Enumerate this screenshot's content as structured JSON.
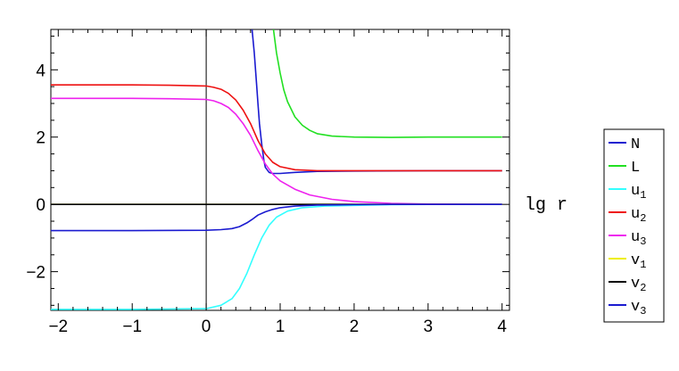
{
  "chart_data": {
    "type": "line",
    "title": "",
    "xlabel": "lg r",
    "ylabel": "",
    "xlim": [
      -2.1,
      4.1
    ],
    "ylim": [
      -3.15,
      5.2
    ],
    "xticks": [
      -2,
      -1,
      0,
      1,
      2,
      3,
      4
    ],
    "xtick_labels": [
      "−2",
      "−1",
      "0",
      "1",
      "2",
      "3",
      "4"
    ],
    "yticks": [
      -2,
      0,
      2,
      4
    ],
    "ytick_labels": [
      "−2",
      "0",
      "2",
      "4"
    ],
    "grid": false,
    "legend_position": "right",
    "series": [
      {
        "name": "N",
        "sub": "",
        "color": "#1a1ad0",
        "x": [
          0.62,
          0.65,
          0.68,
          0.7,
          0.72,
          0.75,
          0.78,
          0.8,
          0.85,
          0.9,
          1.0,
          1.2,
          1.5,
          2.0,
          3.0,
          4.0
        ],
        "y": [
          5.2,
          4.5,
          3.6,
          3.0,
          2.4,
          1.8,
          1.3,
          1.1,
          0.95,
          0.92,
          0.92,
          0.95,
          0.98,
          0.99,
          1.0,
          1.0
        ]
      },
      {
        "name": "L",
        "sub": "",
        "color": "#22e022",
        "x": [
          0.91,
          0.95,
          1.0,
          1.05,
          1.1,
          1.2,
          1.3,
          1.4,
          1.5,
          1.7,
          2.0,
          2.5,
          3.0,
          4.0
        ],
        "y": [
          5.2,
          4.5,
          3.9,
          3.4,
          3.05,
          2.6,
          2.35,
          2.2,
          2.1,
          2.03,
          2.0,
          1.99,
          2.0,
          2.0
        ]
      },
      {
        "name": "u",
        "sub": "1",
        "color": "#33ffff",
        "x": [
          -2.1,
          -1.0,
          0.0,
          0.2,
          0.35,
          0.45,
          0.55,
          0.65,
          0.75,
          0.85,
          0.95,
          1.1,
          1.3,
          1.6,
          2.0,
          2.5,
          3.0,
          4.0
        ],
        "y": [
          -3.12,
          -3.12,
          -3.1,
          -3.0,
          -2.8,
          -2.5,
          -2.05,
          -1.5,
          -1.0,
          -0.62,
          -0.38,
          -0.2,
          -0.1,
          -0.05,
          -0.03,
          -0.01,
          0.0,
          0.0
        ]
      },
      {
        "name": "u",
        "sub": "2",
        "color": "#ee1111",
        "x": [
          -2.1,
          -1.0,
          -0.5,
          0.0,
          0.1,
          0.2,
          0.3,
          0.4,
          0.5,
          0.6,
          0.7,
          0.8,
          0.9,
          1.0,
          1.2,
          1.5,
          2.0,
          3.0,
          4.0
        ],
        "y": [
          3.55,
          3.55,
          3.54,
          3.52,
          3.48,
          3.42,
          3.3,
          3.1,
          2.8,
          2.4,
          1.9,
          1.5,
          1.25,
          1.12,
          1.03,
          1.0,
          1.0,
          1.0,
          1.0
        ]
      },
      {
        "name": "u",
        "sub": "3",
        "color": "#ee22ee",
        "x": [
          -2.1,
          -1.0,
          -0.5,
          0.0,
          0.1,
          0.2,
          0.3,
          0.4,
          0.5,
          0.6,
          0.7,
          0.8,
          0.9,
          1.0,
          1.2,
          1.4,
          1.7,
          2.0,
          2.5,
          3.0,
          4.0
        ],
        "y": [
          3.15,
          3.15,
          3.14,
          3.12,
          3.08,
          3.0,
          2.88,
          2.68,
          2.4,
          2.05,
          1.6,
          1.2,
          0.9,
          0.7,
          0.45,
          0.28,
          0.15,
          0.08,
          0.03,
          0.01,
          0.0
        ]
      },
      {
        "name": "v",
        "sub": "1",
        "color": "#eeee00",
        "x": [
          -2.1,
          4.0
        ],
        "y": [
          0.0,
          0.0
        ]
      },
      {
        "name": "v",
        "sub": "2",
        "color": "#000000",
        "x": [
          -2.1,
          4.0
        ],
        "y": [
          0.0,
          0.0
        ]
      },
      {
        "name": "v",
        "sub": "3",
        "color": "#1a1ad0",
        "x": [
          -2.1,
          -1.0,
          0.0,
          0.2,
          0.35,
          0.45,
          0.55,
          0.62,
          0.7,
          0.8,
          0.9,
          1.0,
          1.2,
          1.5,
          2.0,
          2.5,
          3.0,
          4.0
        ],
        "y": [
          -0.78,
          -0.78,
          -0.77,
          -0.75,
          -0.72,
          -0.66,
          -0.55,
          -0.45,
          -0.32,
          -0.22,
          -0.15,
          -0.1,
          -0.05,
          -0.02,
          -0.01,
          0.0,
          0.0,
          0.0
        ]
      }
    ]
  }
}
